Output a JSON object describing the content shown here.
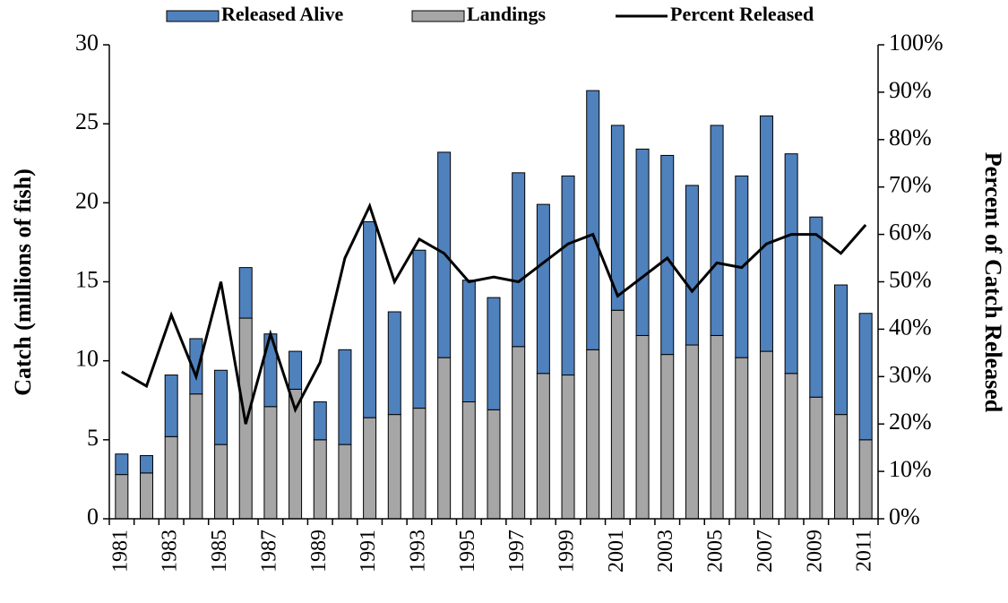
{
  "chart_data": {
    "type": "bar",
    "stacked": true,
    "categories": [
      "1981",
      null,
      "1983",
      null,
      "1985",
      null,
      "1987",
      null,
      "1989",
      null,
      "1991",
      null,
      "1993",
      null,
      "1995",
      null,
      "1997",
      null,
      "1999",
      null,
      "2001",
      null,
      "2003",
      null,
      "2005",
      null,
      "2007",
      null,
      "2009",
      null,
      "2011"
    ],
    "series": [
      {
        "name": "Released Alive",
        "color": "#4f81bd",
        "values": [
          1.3,
          1.1,
          3.9,
          3.5,
          4.7,
          3.2,
          4.6,
          2.4,
          2.4,
          6.0,
          12.4,
          6.5,
          10.0,
          13.0,
          7.7,
          7.1,
          11.0,
          10.7,
          12.6,
          16.4,
          11.7,
          11.8,
          12.6,
          10.1,
          13.3,
          11.5,
          14.9,
          13.9,
          11.4,
          8.2,
          8.0
        ]
      },
      {
        "name": "Landings",
        "color": "#a6a6a6",
        "values": [
          2.8,
          2.9,
          5.2,
          7.9,
          4.7,
          12.7,
          7.1,
          8.2,
          5.0,
          4.7,
          6.4,
          6.6,
          7.0,
          10.2,
          7.4,
          6.9,
          10.9,
          9.2,
          9.1,
          10.7,
          13.2,
          11.6,
          10.4,
          11.0,
          11.6,
          10.2,
          10.6,
          9.2,
          7.7,
          6.6,
          5.0
        ]
      },
      {
        "name": "Percent Released",
        "type": "line",
        "axis": "y2",
        "color": "#000000",
        "values": [
          31,
          28,
          43,
          30,
          50,
          20,
          39,
          23,
          33,
          55,
          66,
          50,
          59,
          56,
          50,
          51,
          50,
          54,
          58,
          60,
          47,
          51,
          55,
          48,
          54,
          53,
          58,
          60,
          60,
          56,
          62
        ]
      }
    ],
    "ylabel": "Catch (millions of fish)",
    "y2label": "Percent of Catch Released",
    "ylim": [
      0,
      30
    ],
    "yticks": [
      0,
      5,
      10,
      15,
      20,
      25,
      30
    ],
    "y2lim": [
      0,
      100
    ],
    "y2ticks": [
      {
        "value": 0,
        "label": "0%"
      },
      {
        "value": 10,
        "label": "10%"
      },
      {
        "value": 20,
        "label": "20%"
      },
      {
        "value": 30,
        "label": "30%"
      },
      {
        "value": 40,
        "label": "40%"
      },
      {
        "value": 50,
        "label": "50%"
      },
      {
        "value": 60,
        "label": "60%"
      },
      {
        "value": 70,
        "label": "70%"
      },
      {
        "value": 80,
        "label": "80%"
      },
      {
        "value": 90,
        "label": "90%"
      },
      {
        "value": 100,
        "label": "100%"
      }
    ]
  }
}
